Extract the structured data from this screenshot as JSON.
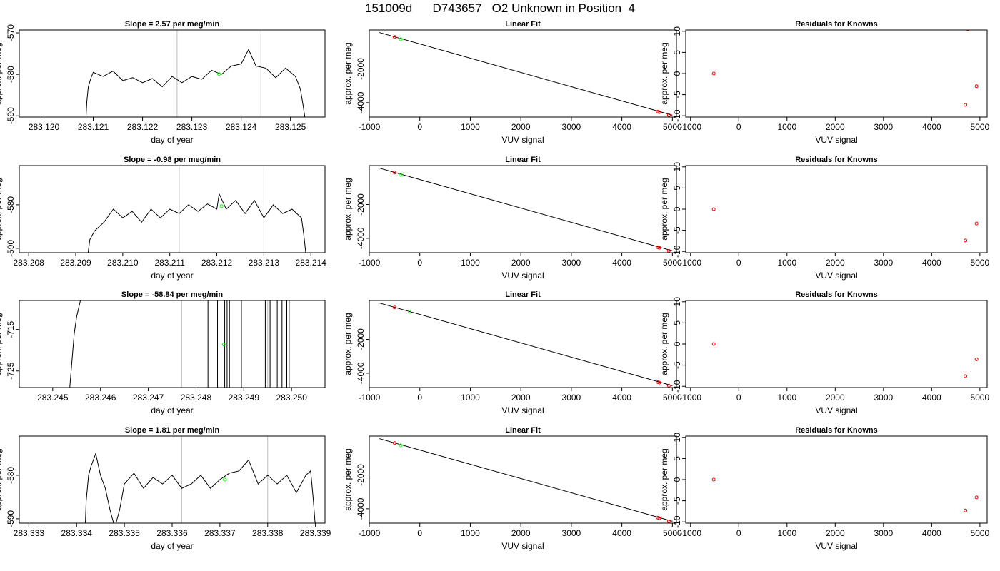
{
  "page": {
    "title": "151009d      D743657   O2 Unknown in Position  4"
  },
  "colors": {
    "trace": "#000000",
    "vline": "#bebebe",
    "green": "#00ff00",
    "red": "#ff0000",
    "frame": "#000000"
  },
  "chart_data": [
    {
      "type": "line",
      "row": 0,
      "col": 0,
      "title": "Slope =  2.57  per meg/min",
      "xlabel": "day of year",
      "ylabel": "approx. per meg",
      "xlim": [
        283.1195,
        283.1257
      ],
      "ylim": [
        -590.3,
        -569.3
      ],
      "xticks": [
        283.12,
        283.121,
        283.122,
        283.123,
        283.124,
        283.125
      ],
      "xtick_labels": [
        "283.120",
        "283.121",
        "283.122",
        "283.123",
        "283.124",
        "283.125"
      ],
      "yticks": [
        -590,
        -580,
        -570
      ],
      "ytick_labels": [
        "-590",
        "-580",
        "-570"
      ],
      "vlines": [
        283.1227,
        283.1244
      ],
      "green_points": [
        {
          "x": 283.12355,
          "y": -579.9
        }
      ],
      "series": [
        {
          "x": [
            283.12085,
            283.12087,
            283.1209,
            283.12095,
            283.121,
            283.1212,
            283.1214,
            283.1216,
            283.1218,
            283.122,
            283.1222,
            283.1224,
            283.1226,
            283.1228,
            283.123,
            283.1232,
            283.1234,
            283.1236,
            283.1238,
            283.124,
            283.12415,
            283.1243,
            283.1245,
            283.1247,
            283.1249,
            283.1251,
            283.1252,
            283.12525,
            283.1253
          ],
          "y": [
            -591,
            -586.5,
            -583,
            -581,
            -579.5,
            -580.5,
            -579.2,
            -581.5,
            -580.8,
            -582,
            -581,
            -583,
            -580.5,
            -582,
            -580.5,
            -581.2,
            -579,
            -580,
            -578,
            -577.5,
            -574,
            -578,
            -578.5,
            -580.8,
            -578.5,
            -580.5,
            -583.5,
            -587,
            -591
          ]
        }
      ]
    },
    {
      "type": "scatter",
      "row": 0,
      "col": 1,
      "title": "Linear Fit",
      "xlabel": "VUV signal",
      "ylabel": "approx. per meg",
      "xlim": [
        -1000,
        5080
      ],
      "ylim": [
        -4850,
        300
      ],
      "xticks": [
        -1000,
        0,
        1000,
        2000,
        3000,
        4000,
        5000
      ],
      "xtick_labels": [
        "-1000",
        "0",
        "1000",
        "2000",
        "3000",
        "4000",
        "5000"
      ],
      "yticks": [
        -4000,
        -2000
      ],
      "ytick_labels": [
        "-4000",
        "-2000"
      ],
      "fit_line": [
        [
          -800,
          150
        ],
        [
          5000,
          -4740
        ]
      ],
      "red_points": [
        {
          "x": -500,
          "y": -110
        },
        {
          "x": 4710,
          "y": -4530
        },
        {
          "x": 4740,
          "y": -4560
        },
        {
          "x": 4930,
          "y": -4740
        }
      ],
      "green_points": [
        {
          "x": -380,
          "y": -250
        }
      ]
    },
    {
      "type": "scatter",
      "row": 0,
      "col": 2,
      "title": "Residuals for Knowns",
      "xlabel": "VUV signal",
      "ylabel": "approx. per meg",
      "xlim": [
        -1100,
        5150
      ],
      "ylim": [
        -10.3,
        10.3
      ],
      "xticks": [
        -1000,
        0,
        1000,
        2000,
        3000,
        4000,
        5000
      ],
      "xtick_labels": [
        "-1000",
        "0",
        "1000",
        "2000",
        "3000",
        "4000",
        "5000"
      ],
      "yticks": [
        -10,
        -5,
        0,
        5,
        10
      ],
      "ytick_labels": [
        "-10",
        "-5",
        "0",
        "5",
        "10"
      ],
      "red_points": [
        {
          "x": -520,
          "y": 0
        },
        {
          "x": 4700,
          "y": -7.4
        },
        {
          "x": 4750,
          "y": 10.5
        },
        {
          "x": 4930,
          "y": -3
        }
      ]
    },
    {
      "type": "line",
      "row": 1,
      "col": 0,
      "title": "Slope =  -0.98  per meg/min",
      "xlabel": "day of year",
      "ylabel": "approx. per meg",
      "xlim": [
        283.2078,
        283.2143
      ],
      "ylim": [
        -591,
        -571
      ],
      "xticks": [
        283.208,
        283.209,
        283.21,
        283.211,
        283.212,
        283.213,
        283.214
      ],
      "xtick_labels": [
        "283.208",
        "283.209",
        "283.210",
        "283.211",
        "283.212",
        "283.213",
        "283.214"
      ],
      "yticks": [
        -590,
        -580
      ],
      "ytick_labels": [
        "-590",
        "-580"
      ],
      "vlines": [
        283.2112,
        283.213
      ],
      "green_points": [
        {
          "x": 283.2121,
          "y": -580.3
        }
      ],
      "series": [
        {
          "x": [
            283.20925,
            283.2093,
            283.2094,
            283.2096,
            283.2098,
            283.21,
            283.2102,
            283.2104,
            283.2106,
            283.2108,
            283.211,
            283.2112,
            283.2114,
            283.2116,
            283.2118,
            283.212,
            283.21205,
            283.2122,
            283.2124,
            283.2126,
            283.2128,
            283.213,
            283.2132,
            283.2134,
            283.2136,
            283.2138,
            283.21385,
            283.2139
          ],
          "y": [
            -592,
            -588,
            -586,
            -584,
            -581,
            -583,
            -581.5,
            -584,
            -581,
            -583,
            -581,
            -582,
            -580,
            -581.5,
            -579.8,
            -581,
            -577.5,
            -581,
            -579,
            -582,
            -579,
            -583,
            -580,
            -582,
            -581,
            -583,
            -587,
            -592
          ]
        }
      ]
    },
    {
      "type": "scatter",
      "row": 1,
      "col": 1,
      "title": "Linear Fit",
      "xlabel": "VUV signal",
      "ylabel": "approx. per meg",
      "xlim": [
        -1000,
        5080
      ],
      "ylim": [
        -4850,
        300
      ],
      "xticks": [
        -1000,
        0,
        1000,
        2000,
        3000,
        4000,
        5000
      ],
      "xtick_labels": [
        "-1000",
        "0",
        "1000",
        "2000",
        "3000",
        "4000",
        "5000"
      ],
      "yticks": [
        -4000,
        -2000
      ],
      "ytick_labels": [
        "-4000",
        "-2000"
      ],
      "fit_line": [
        [
          -800,
          150
        ],
        [
          5000,
          -4740
        ]
      ],
      "red_points": [
        {
          "x": -500,
          "y": -110
        },
        {
          "x": 4710,
          "y": -4530
        },
        {
          "x": 4740,
          "y": -4560
        },
        {
          "x": 4930,
          "y": -4740
        }
      ],
      "green_points": [
        {
          "x": -380,
          "y": -250
        }
      ]
    },
    {
      "type": "scatter",
      "row": 1,
      "col": 2,
      "title": "Residuals for Knowns",
      "xlabel": "VUV signal",
      "ylabel": "approx. per meg",
      "xlim": [
        -1100,
        5150
      ],
      "ylim": [
        -10.3,
        10.3
      ],
      "xticks": [
        -1000,
        0,
        1000,
        2000,
        3000,
        4000,
        5000
      ],
      "xtick_labels": [
        "-1000",
        "0",
        "1000",
        "2000",
        "3000",
        "4000",
        "5000"
      ],
      "yticks": [
        -10,
        -5,
        0,
        5,
        10
      ],
      "ytick_labels": [
        "-10",
        "-5",
        "0",
        "5",
        "10"
      ],
      "red_points": [
        {
          "x": -520,
          "y": 0
        },
        {
          "x": 4700,
          "y": -7.4
        },
        {
          "x": 4930,
          "y": -3.4
        }
      ]
    },
    {
      "type": "line",
      "row": 2,
      "col": 0,
      "title": "Slope =  -58.84  per meg/min",
      "xlabel": "day of year",
      "ylabel": "approx. per meg",
      "xlim": [
        283.2443,
        283.2507
      ],
      "ylim": [
        -729,
        -708
      ],
      "xticks": [
        283.245,
        283.246,
        283.247,
        283.248,
        283.249,
        283.25
      ],
      "xtick_labels": [
        "283.245",
        "283.246",
        "283.247",
        "283.248",
        "283.249",
        "283.250"
      ],
      "yticks": [
        -725,
        -715
      ],
      "ytick_labels": [
        "-725",
        "-715"
      ],
      "vlines": [
        283.2477,
        283.2495
      ],
      "green_points": [
        {
          "x": 283.24858,
          "y": -718.6
        }
      ],
      "spikes": [
        283.24825,
        283.24845,
        283.2486,
        283.24865,
        283.2487,
        283.24895,
        283.24945,
        283.24955,
        283.2497,
        283.2498,
        283.2499,
        283.24995
      ],
      "series": [
        {
          "x": [
            283.24535,
            283.24545,
            283.2455,
            283.2456
          ],
          "y": [
            -730,
            -716,
            -712,
            -707
          ]
        }
      ]
    },
    {
      "type": "scatter",
      "row": 2,
      "col": 1,
      "title": "Linear Fit",
      "xlabel": "VUV signal",
      "ylabel": "approx. per meg",
      "xlim": [
        -1000,
        5080
      ],
      "ylim": [
        -4850,
        300
      ],
      "xticks": [
        -1000,
        0,
        1000,
        2000,
        3000,
        4000,
        5000
      ],
      "xtick_labels": [
        "-1000",
        "0",
        "1000",
        "2000",
        "3000",
        "4000",
        "5000"
      ],
      "yticks": [
        -4000,
        -2000
      ],
      "ytick_labels": [
        "-4000",
        "-2000"
      ],
      "fit_line": [
        [
          -800,
          150
        ],
        [
          5000,
          -4740
        ]
      ],
      "red_points": [
        {
          "x": -500,
          "y": -110
        },
        {
          "x": 4710,
          "y": -4530
        },
        {
          "x": 4740,
          "y": -4560
        },
        {
          "x": 4930,
          "y": -4740
        }
      ],
      "green_points": [
        {
          "x": -200,
          "y": -360
        }
      ]
    },
    {
      "type": "scatter",
      "row": 2,
      "col": 2,
      "title": "Residuals for Knowns",
      "xlabel": "VUV signal",
      "ylabel": "approx. per meg",
      "xlim": [
        -1100,
        5150
      ],
      "ylim": [
        -10.3,
        10.3
      ],
      "xticks": [
        -1000,
        0,
        1000,
        2000,
        3000,
        4000,
        5000
      ],
      "xtick_labels": [
        "-1000",
        "0",
        "1000",
        "2000",
        "3000",
        "4000",
        "5000"
      ],
      "yticks": [
        -10,
        -5,
        0,
        5,
        10
      ],
      "ytick_labels": [
        "-10",
        "-5",
        "0",
        "5",
        "10"
      ],
      "red_points": [
        {
          "x": -520,
          "y": 0
        },
        {
          "x": 4700,
          "y": -7.6
        },
        {
          "x": 4930,
          "y": -3.6
        }
      ]
    },
    {
      "type": "line",
      "row": 3,
      "col": 0,
      "title": "Slope =  1.81  per meg/min",
      "xlabel": "day of year",
      "ylabel": "approx. per meg",
      "xlim": [
        283.3328,
        283.3392
      ],
      "ylim": [
        -591,
        -571
      ],
      "xticks": [
        283.333,
        283.334,
        283.335,
        283.336,
        283.337,
        283.338,
        283.339
      ],
      "xtick_labels": [
        "283.333",
        "283.334",
        "283.335",
        "283.336",
        "283.337",
        "283.338",
        "283.339"
      ],
      "yticks": [
        -590,
        -580
      ],
      "ytick_labels": [
        "-590",
        "-580"
      ],
      "vlines": [
        283.3362,
        283.338
      ],
      "green_points": [
        {
          "x": 283.3371,
          "y": -581
        }
      ],
      "series": [
        {
          "x": [
            283.33418,
            283.3342,
            283.33425,
            283.3343,
            283.3344,
            283.3345,
            283.3346,
            283.3347,
            283.3348,
            283.3349,
            283.335,
            283.3352,
            283.3354,
            283.3356,
            283.3358,
            283.336,
            283.3362,
            283.3364,
            283.3366,
            283.3368,
            283.337,
            283.3372,
            283.3374,
            283.3376,
            283.3378,
            283.338,
            283.3382,
            283.3384,
            283.3386,
            283.3388,
            283.3389,
            283.33895,
            283.339
          ],
          "y": [
            -592,
            -586,
            -580,
            -578,
            -575,
            -580,
            -583,
            -588,
            -592,
            -588,
            -582,
            -579.5,
            -583,
            -580.5,
            -582,
            -580,
            -583,
            -582,
            -580,
            -583,
            -581,
            -579.5,
            -579,
            -576.5,
            -582,
            -580,
            -582,
            -580,
            -584,
            -580,
            -579,
            -585,
            -592
          ]
        }
      ]
    },
    {
      "type": "scatter",
      "row": 3,
      "col": 1,
      "title": "Linear Fit",
      "xlabel": "VUV signal",
      "ylabel": "approx. per meg",
      "xlim": [
        -1000,
        5080
      ],
      "ylim": [
        -4850,
        300
      ],
      "xticks": [
        -1000,
        0,
        1000,
        2000,
        3000,
        4000,
        5000
      ],
      "xtick_labels": [
        "-1000",
        "0",
        "1000",
        "2000",
        "3000",
        "4000",
        "5000"
      ],
      "yticks": [
        -4000,
        -2000
      ],
      "ytick_labels": [
        "-4000",
        "-2000"
      ],
      "fit_line": [
        [
          -800,
          150
        ],
        [
          5000,
          -4740
        ]
      ],
      "red_points": [
        {
          "x": -500,
          "y": -110
        },
        {
          "x": 4710,
          "y": -4530
        },
        {
          "x": 4740,
          "y": -4560
        },
        {
          "x": 4930,
          "y": -4740
        }
      ],
      "green_points": [
        {
          "x": -380,
          "y": -250
        }
      ]
    },
    {
      "type": "scatter",
      "row": 3,
      "col": 2,
      "title": "Residuals for Knowns",
      "xlabel": "VUV signal",
      "ylabel": "approx. per meg",
      "xlim": [
        -1100,
        5150
      ],
      "ylim": [
        -10.3,
        10.3
      ],
      "xticks": [
        -1000,
        0,
        1000,
        2000,
        3000,
        4000,
        5000
      ],
      "xtick_labels": [
        "-1000",
        "0",
        "1000",
        "2000",
        "3000",
        "4000",
        "5000"
      ],
      "yticks": [
        -10,
        -5,
        0,
        5,
        10
      ],
      "ytick_labels": [
        "-10",
        "-5",
        "0",
        "5",
        "10"
      ],
      "red_points": [
        {
          "x": -520,
          "y": 0
        },
        {
          "x": 4700,
          "y": -7.3
        },
        {
          "x": 4930,
          "y": -4.2
        }
      ]
    }
  ]
}
